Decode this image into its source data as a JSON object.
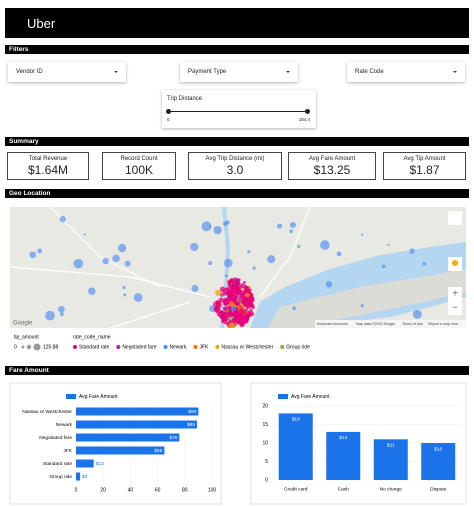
{
  "header": {
    "logo": "Uber"
  },
  "sections": [
    "Filters",
    "Summary",
    "Geo Location",
    "Fare Amount"
  ],
  "filters": {
    "dropdowns": [
      "Vendor ID",
      "Payment Type",
      "Rate Code"
    ],
    "slider": {
      "label": "Trip Distance",
      "min_label": "0",
      "max_label": "184.4"
    }
  },
  "summary": [
    {
      "label": "Total Revenue",
      "value": "$1.64M"
    },
    {
      "label": "Record Count",
      "value": "100K"
    },
    {
      "label": "Avg Trip Distance (mi)",
      "value": "3.0"
    },
    {
      "label": "Avg Fare Amount",
      "value": "$13.25"
    },
    {
      "label": "Avg Tip Amount",
      "value": "$1.87"
    }
  ],
  "map": {
    "logo": "Google",
    "attribution": [
      "Keyboard shortcuts",
      "Map data ©2023 Google",
      "Terms of Use",
      "Report a map error"
    ],
    "legend": {
      "size_title": "tip_amount",
      "size_min": "0",
      "size_max": "125.88",
      "color_title": "rate_code_name",
      "items": [
        {
          "name": "Standard rate",
          "color": "#e4007c"
        },
        {
          "name": "Negotiated fare",
          "color": "#9c27b0"
        },
        {
          "name": "Newark",
          "color": "#4285f4"
        },
        {
          "name": "JFK",
          "color": "#ff6d00"
        },
        {
          "name": "Nassau or Westchester",
          "color": "#f4a300"
        },
        {
          "name": "Group ride",
          "color": "#7cb342"
        }
      ]
    }
  },
  "chart_data": [
    {
      "type": "bar",
      "orientation": "horizontal",
      "categories": [
        "Nassau or Westchester",
        "Newark",
        "Negotiated fare",
        "JFK",
        "Standard rate",
        "Group ride"
      ],
      "series": [
        {
          "name": "Avg Fare Amount",
          "color": "#1a73e8",
          "values": [
            90,
            89,
            76,
            65,
            13,
            3
          ],
          "value_labels": [
            "$90",
            "$89",
            "$76",
            "$65",
            "$13",
            "$3"
          ]
        }
      ],
      "xlim": [
        0,
        100
      ],
      "xticks": [
        0,
        20,
        40,
        60,
        80,
        100
      ],
      "grid": true
    },
    {
      "type": "bar",
      "orientation": "vertical",
      "categories": [
        "Credit card",
        "Cash",
        "No charge",
        "Dispute"
      ],
      "series": [
        {
          "name": "Avg Fare Amount",
          "color": "#1a73e8",
          "values": [
            18,
            13,
            11,
            10
          ],
          "value_labels": [
            "$18",
            "$13",
            "$11",
            "$10"
          ]
        }
      ],
      "ylim": [
        0,
        20
      ],
      "yticks": [
        0,
        5,
        10,
        15,
        20
      ],
      "grid": true
    }
  ]
}
